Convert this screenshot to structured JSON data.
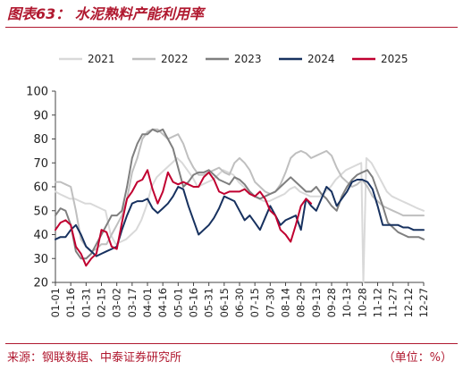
{
  "header": {
    "title": "图表63： 水泥熟料产能利用率"
  },
  "footer": {
    "source": "来源：钢联数据、中泰证券研究所",
    "unit": "（单位：%）"
  },
  "chart_data": {
    "type": "line",
    "title": "",
    "xlabel": "",
    "ylabel": "",
    "ylim": [
      20,
      100
    ],
    "y_ticks": [
      "20",
      "30",
      "40",
      "50",
      "60",
      "70",
      "80",
      "90",
      "100"
    ],
    "x_tick_labels": [
      "01-01",
      "01-16",
      "01-31",
      "02-15",
      "03-02",
      "03-17",
      "04-01",
      "04-16",
      "05-01",
      "05-16",
      "05-31",
      "06-15",
      "06-30",
      "07-15",
      "07-30",
      "08-14",
      "08-29",
      "09-13",
      "09-28",
      "10-13",
      "10-28",
      "11-12",
      "11-27",
      "12-12",
      "12-27"
    ],
    "x_domain_days": [
      1,
      361
    ],
    "legend_placement": "top",
    "grid": false,
    "series": [
      {
        "name": "2021",
        "color": "#d9d9d9",
        "x_days": [
          1,
          5,
          10,
          15,
          20,
          25,
          30,
          35,
          40,
          45,
          50,
          55,
          60,
          65,
          70,
          75,
          80,
          85,
          90,
          95,
          100,
          105,
          110,
          115,
          120,
          125,
          130,
          135,
          140,
          145,
          150,
          155,
          160,
          165,
          170,
          175,
          180,
          185,
          190,
          195,
          200,
          205,
          210,
          215,
          220,
          225,
          230,
          235,
          240,
          245,
          250,
          255,
          260,
          265,
          270,
          275,
          280,
          285,
          290,
          295,
          300,
          302,
          305,
          310,
          315,
          320,
          325,
          330,
          335,
          340,
          345,
          350,
          355,
          361
        ],
        "values": [
          58,
          57,
          56,
          55,
          55,
          54,
          53,
          53,
          52,
          51,
          50,
          40,
          36,
          37,
          38,
          40,
          42,
          46,
          52,
          60,
          64,
          66,
          68,
          70,
          72,
          70,
          67,
          64,
          60,
          61,
          62,
          63,
          65,
          67,
          66,
          65,
          62,
          60,
          58,
          56,
          55,
          54,
          54,
          55,
          56,
          57,
          59,
          60,
          58,
          57,
          56,
          56,
          56,
          58,
          60,
          63,
          65,
          67,
          68,
          69,
          70,
          20,
          72,
          70,
          66,
          62,
          58,
          56,
          55,
          54,
          53,
          52,
          51,
          50
        ]
      },
      {
        "name": "2022",
        "color": "#bfbfbf",
        "x_days": [
          1,
          6,
          11,
          16,
          21,
          26,
          31,
          36,
          41,
          46,
          51,
          56,
          61,
          66,
          71,
          76,
          81,
          86,
          91,
          96,
          101,
          106,
          111,
          116,
          121,
          126,
          131,
          136,
          141,
          146,
          151,
          156,
          161,
          166,
          171,
          176,
          181,
          186,
          191,
          196,
          201,
          206,
          211,
          216,
          221,
          226,
          231,
          236,
          241,
          246,
          251,
          256,
          261,
          266,
          271,
          276,
          281,
          286,
          291,
          296,
          301,
          306,
          311,
          316,
          321,
          326,
          331,
          336,
          341,
          346,
          351,
          356,
          361
        ],
        "values": [
          62,
          62,
          61,
          60,
          50,
          38,
          35,
          33,
          34,
          36,
          36,
          40,
          44,
          48,
          55,
          66,
          72,
          80,
          83,
          84,
          84,
          82,
          80,
          81,
          82,
          78,
          72,
          68,
          65,
          65,
          66,
          67,
          68,
          66,
          65,
          70,
          72,
          70,
          67,
          62,
          60,
          58,
          57,
          58,
          61,
          66,
          72,
          74,
          75,
          74,
          72,
          73,
          74,
          75,
          73,
          68,
          64,
          62,
          60,
          61,
          63,
          60,
          56,
          54,
          52,
          51,
          50,
          49,
          48,
          48,
          48,
          48,
          48
        ]
      },
      {
        "name": "2023",
        "color": "#7f7f7f",
        "x_days": [
          1,
          6,
          11,
          16,
          21,
          26,
          31,
          36,
          41,
          46,
          51,
          56,
          61,
          66,
          71,
          76,
          81,
          86,
          91,
          96,
          101,
          106,
          111,
          116,
          121,
          126,
          131,
          136,
          141,
          146,
          151,
          156,
          161,
          166,
          171,
          176,
          181,
          186,
          191,
          196,
          201,
          206,
          211,
          216,
          221,
          226,
          231,
          236,
          241,
          246,
          251,
          256,
          261,
          266,
          271,
          276,
          281,
          286,
          291,
          296,
          301,
          306,
          311,
          316,
          321,
          326,
          331,
          336,
          341,
          346,
          351,
          356,
          361
        ],
        "values": [
          48,
          51,
          50,
          44,
          33,
          30,
          30,
          32,
          36,
          40,
          44,
          48,
          48,
          50,
          60,
          72,
          78,
          82,
          82,
          84,
          83,
          84,
          80,
          76,
          68,
          60,
          62,
          65,
          66,
          66,
          67,
          65,
          63,
          62,
          61,
          64,
          63,
          61,
          58,
          56,
          55,
          56,
          57,
          58,
          60,
          62,
          64,
          62,
          60,
          58,
          58,
          60,
          57,
          55,
          52,
          50,
          56,
          60,
          63,
          65,
          66,
          67,
          64,
          58,
          52,
          45,
          43,
          41,
          40,
          39,
          39,
          39,
          38
        ]
      },
      {
        "name": "2024",
        "color": "#17315f",
        "x_days": [
          1,
          6,
          11,
          16,
          21,
          26,
          31,
          36,
          41,
          46,
          51,
          56,
          61,
          66,
          71,
          76,
          81,
          86,
          91,
          96,
          101,
          106,
          111,
          116,
          121,
          126,
          131,
          136,
          141,
          146,
          151,
          156,
          161,
          166,
          171,
          176,
          181,
          186,
          191,
          196,
          201,
          206,
          211,
          216,
          221,
          226,
          231,
          236,
          241,
          246,
          251,
          256,
          261,
          266,
          271,
          276,
          281,
          286,
          291,
          296,
          301,
          306,
          311,
          316,
          321,
          326,
          331,
          336,
          341,
          346,
          351,
          356,
          361
        ],
        "values": [
          38,
          39,
          39,
          42,
          44,
          40,
          35,
          33,
          31,
          32,
          33,
          34,
          35,
          42,
          48,
          53,
          54,
          54,
          55,
          51,
          49,
          51,
          53,
          56,
          60,
          59,
          52,
          46,
          40,
          42,
          44,
          47,
          51,
          56,
          55,
          54,
          50,
          46,
          48,
          45,
          42,
          47,
          52,
          48,
          44,
          46,
          47,
          48,
          42,
          55,
          52,
          50,
          55,
          60,
          58,
          52,
          55,
          58,
          62,
          63,
          63,
          62,
          59,
          52,
          44,
          44,
          44,
          44,
          43,
          43,
          42,
          42,
          42
        ]
      },
      {
        "name": "2025",
        "color": "#c00030",
        "x_days": [
          1,
          6,
          11,
          16,
          21,
          26,
          31,
          36,
          41,
          46,
          51,
          56,
          61,
          66,
          71,
          76,
          81,
          86,
          91,
          96,
          101,
          106,
          111,
          116,
          121,
          126,
          131,
          136,
          141,
          146,
          151,
          156,
          161,
          166,
          171,
          176,
          181,
          186,
          191,
          196,
          201,
          206,
          211,
          216,
          221,
          226,
          231,
          236,
          241,
          246,
          251
        ],
        "values": [
          42,
          45,
          46,
          44,
          35,
          32,
          27,
          30,
          32,
          42,
          41,
          35,
          34,
          45,
          55,
          58,
          62,
          63,
          67,
          59,
          53,
          58,
          66,
          62,
          61,
          62,
          61,
          60,
          60,
          64,
          66,
          63,
          58,
          57,
          58,
          58,
          58,
          59,
          57,
          56,
          58,
          55,
          50,
          48,
          42,
          40,
          37,
          44,
          52,
          55,
          53
        ]
      }
    ]
  }
}
